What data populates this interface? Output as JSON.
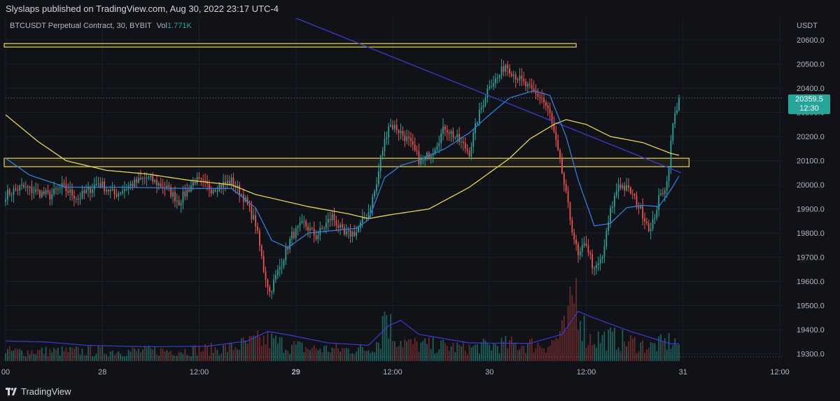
{
  "header": {
    "published_text": "Slyslaps published on TradingView.com, Aug 30, 2022 23:17 UTC-4"
  },
  "symbol": {
    "title": "BTCUSDT Perpetual Contract, 30, BYBIT",
    "vol_label": "Vol",
    "vol_value": "1.771K"
  },
  "price_tag": {
    "price": "20359.5",
    "countdown": "12:30"
  },
  "footer": {
    "brand": "TradingView"
  },
  "colors": {
    "background": "#101217",
    "up": "#26a69a",
    "down": "#ef5350",
    "ma_blue": "#2f7fd8",
    "ma_yellow": "#e8d44d",
    "trendline": "#3c3ccf",
    "zone": "#e8d44d"
  },
  "chart_data": {
    "type": "candlestick",
    "title": "BTCUSDT Perpetual Contract, 30, BYBIT",
    "currency": "USDT",
    "ylim": [
      19270,
      20690
    ],
    "y_ticks": [
      "20600.0",
      "20500.0",
      "20400.0",
      "20300.0",
      "20200.0",
      "20100.0",
      "20000.0",
      "19900.0",
      "19800.0",
      "19700.0",
      "19600.0",
      "19500.0",
      "19400.0",
      "19300.0"
    ],
    "y_tick_values": [
      20600,
      20500,
      20400,
      20300,
      20200,
      20100,
      20000,
      19900,
      19800,
      19700,
      19600,
      19500,
      19400,
      19300
    ],
    "x_ticks": [
      {
        "label": "00",
        "i": 0
      },
      {
        "label": "28",
        "i": 48
      },
      {
        "label": "12:00",
        "i": 96
      },
      {
        "label": "29",
        "i": 144
      },
      {
        "label": "12:00",
        "i": 192
      },
      {
        "label": "30",
        "i": 240
      },
      {
        "label": "12:00",
        "i": 288
      },
      {
        "label": "31",
        "i": 336
      },
      {
        "label": "12:00",
        "i": 384
      }
    ],
    "bold_x_ticks": [
      "29"
    ],
    "candle_count": 335,
    "last_price": 20359.5,
    "anchors": [
      [
        0,
        19960
      ],
      [
        8,
        19990
      ],
      [
        22,
        19955
      ],
      [
        28,
        19990
      ],
      [
        36,
        19945
      ],
      [
        46,
        20010
      ],
      [
        54,
        19960
      ],
      [
        62,
        20000
      ],
      [
        70,
        20030
      ],
      [
        80,
        19985
      ],
      [
        86,
        19930
      ],
      [
        94,
        20020
      ],
      [
        102,
        19985
      ],
      [
        112,
        20015
      ],
      [
        118,
        19950
      ],
      [
        124,
        19840
      ],
      [
        128,
        19650
      ],
      [
        131,
        19555
      ],
      [
        136,
        19660
      ],
      [
        142,
        19790
      ],
      [
        148,
        19840
      ],
      [
        154,
        19785
      ],
      [
        162,
        19870
      ],
      [
        168,
        19790
      ],
      [
        174,
        19805
      ],
      [
        180,
        19890
      ],
      [
        184,
        20000
      ],
      [
        186,
        20110
      ],
      [
        190,
        20250
      ],
      [
        194,
        20235
      ],
      [
        200,
        20180
      ],
      [
        206,
        20090
      ],
      [
        212,
        20145
      ],
      [
        218,
        20240
      ],
      [
        224,
        20190
      ],
      [
        230,
        20135
      ],
      [
        234,
        20270
      ],
      [
        240,
        20420
      ],
      [
        244,
        20440
      ],
      [
        248,
        20500
      ],
      [
        252,
        20460
      ],
      [
        258,
        20410
      ],
      [
        262,
        20380
      ],
      [
        266,
        20360
      ],
      [
        270,
        20290
      ],
      [
        276,
        20050
      ],
      [
        280,
        19860
      ],
      [
        284,
        19700
      ],
      [
        288,
        19760
      ],
      [
        292,
        19640
      ],
      [
        296,
        19700
      ],
      [
        300,
        19890
      ],
      [
        304,
        20005
      ],
      [
        310,
        19970
      ],
      [
        316,
        19880
      ],
      [
        320,
        19810
      ],
      [
        324,
        19940
      ],
      [
        328,
        20010
      ],
      [
        331,
        20250
      ],
      [
        334,
        20359.5
      ]
    ],
    "volume": {
      "ylim": [
        0,
        1900
      ],
      "anchors": [
        [
          0,
          250
        ],
        [
          30,
          260
        ],
        [
          60,
          260
        ],
        [
          90,
          280
        ],
        [
          110,
          330
        ],
        [
          125,
          520
        ],
        [
          130,
          550
        ],
        [
          140,
          410
        ],
        [
          150,
          330
        ],
        [
          170,
          300
        ],
        [
          180,
          320
        ],
        [
          186,
          600
        ],
        [
          188,
          1450
        ],
        [
          192,
          700
        ],
        [
          200,
          440
        ],
        [
          230,
          340
        ],
        [
          245,
          430
        ],
        [
          270,
          430
        ],
        [
          278,
          840
        ],
        [
          283,
          1900
        ],
        [
          288,
          600
        ],
        [
          300,
          600
        ],
        [
          320,
          380
        ],
        [
          330,
          520
        ],
        [
          334,
          450
        ]
      ],
      "ma_anchors": [
        [
          0,
          420
        ],
        [
          20,
          400
        ],
        [
          40,
          330
        ],
        [
          70,
          300
        ],
        [
          100,
          310
        ],
        [
          120,
          420
        ],
        [
          130,
          620
        ],
        [
          140,
          550
        ],
        [
          160,
          380
        ],
        [
          180,
          330
        ],
        [
          190,
          740
        ],
        [
          196,
          850
        ],
        [
          205,
          560
        ],
        [
          230,
          380
        ],
        [
          260,
          370
        ],
        [
          276,
          560
        ],
        [
          284,
          1040
        ],
        [
          290,
          930
        ],
        [
          310,
          620
        ],
        [
          330,
          360
        ],
        [
          334,
          360
        ]
      ]
    },
    "zones": [
      {
        "from_i": 0,
        "to_i": 283,
        "low": 20575,
        "high": 20585
      },
      {
        "from_i": 0,
        "to_i": 339,
        "low": 20075,
        "high": 20110
      }
    ],
    "trendline": {
      "from": [
        130,
        20720
      ],
      "to": [
        335,
        20050
      ]
    },
    "ma_short_anchors": [
      [
        0,
        20110
      ],
      [
        12,
        20040
      ],
      [
        30,
        19990
      ],
      [
        60,
        19990
      ],
      [
        90,
        19985
      ],
      [
        112,
        19985
      ],
      [
        124,
        19905
      ],
      [
        132,
        19770
      ],
      [
        140,
        19740
      ],
      [
        150,
        19800
      ],
      [
        162,
        19810
      ],
      [
        174,
        19820
      ],
      [
        180,
        19855
      ],
      [
        188,
        20030
      ],
      [
        196,
        20080
      ],
      [
        206,
        20105
      ],
      [
        218,
        20150
      ],
      [
        230,
        20215
      ],
      [
        240,
        20290
      ],
      [
        250,
        20360
      ],
      [
        262,
        20390
      ],
      [
        270,
        20370
      ],
      [
        278,
        20200
      ],
      [
        284,
        20020
      ],
      [
        292,
        19830
      ],
      [
        300,
        19840
      ],
      [
        308,
        19905
      ],
      [
        316,
        19915
      ],
      [
        324,
        19910
      ],
      [
        330,
        19980
      ],
      [
        335,
        20050
      ]
    ],
    "ma_long_anchors": [
      [
        0,
        20290
      ],
      [
        16,
        20180
      ],
      [
        30,
        20100
      ],
      [
        50,
        20060
      ],
      [
        70,
        20045
      ],
      [
        90,
        20020
      ],
      [
        112,
        20000
      ],
      [
        124,
        19960
      ],
      [
        150,
        19910
      ],
      [
        170,
        19880
      ],
      [
        180,
        19860
      ],
      [
        190,
        19875
      ],
      [
        210,
        19900
      ],
      [
        230,
        19990
      ],
      [
        250,
        20110
      ],
      [
        260,
        20190
      ],
      [
        272,
        20250
      ],
      [
        278,
        20270
      ],
      [
        288,
        20250
      ],
      [
        300,
        20200
      ],
      [
        316,
        20175
      ],
      [
        330,
        20130
      ],
      [
        335,
        20120
      ]
    ]
  }
}
